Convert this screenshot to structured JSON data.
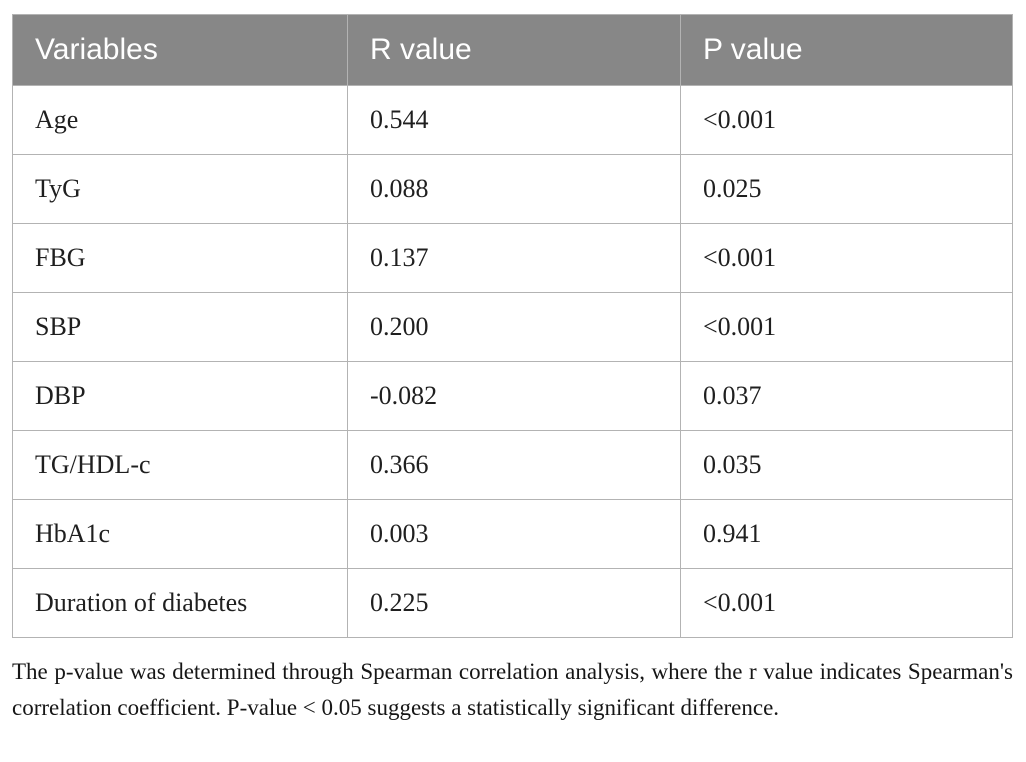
{
  "colors": {
    "header_bg": "#878787",
    "header_text": "#ffffff",
    "grid_border": "#b3b3b3",
    "body_text": "#1f1f1f"
  },
  "table": {
    "header": {
      "variables": "Variables",
      "r": "R value",
      "p": "P value"
    },
    "rows": [
      {
        "variable": "Age",
        "r": "0.544",
        "p": "<0.001"
      },
      {
        "variable": "TyG",
        "r": "0.088",
        "p": "0.025"
      },
      {
        "variable": "FBG",
        "r": "0.137",
        "p": "<0.001"
      },
      {
        "variable": "SBP",
        "r": "0.200",
        "p": "<0.001"
      },
      {
        "variable": "DBP",
        "r": "-0.082",
        "p": "0.037"
      },
      {
        "variable": "TG/HDL-c",
        "r": "0.366",
        "p": "0.035"
      },
      {
        "variable": "HbA1c",
        "r": "0.003",
        "p": "0.941"
      },
      {
        "variable": "Duration of diabetes",
        "r": "0.225",
        "p": "<0.001"
      }
    ]
  },
  "footnote": "The p-value was determined through Spearman correlation analysis, where the r value indicates Spearman's correlation coefficient. P-value < 0.05 suggests a statistically significant difference."
}
